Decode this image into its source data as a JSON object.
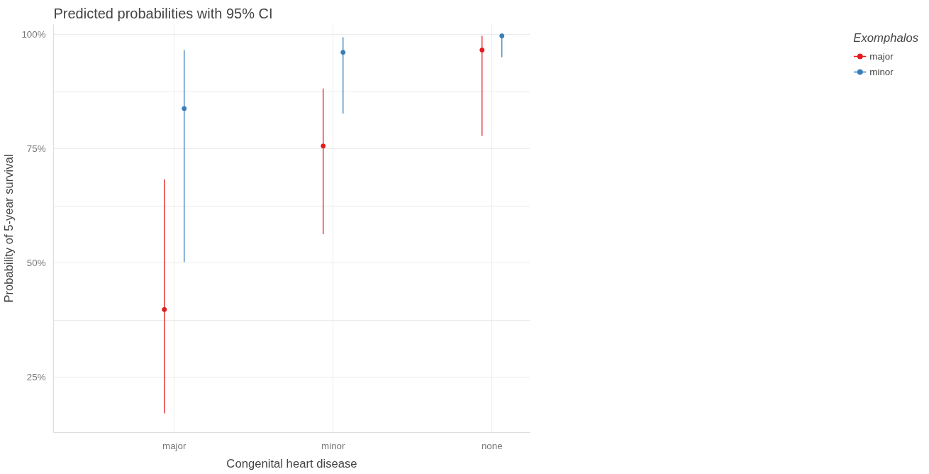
{
  "chart_data": {
    "type": "scatter",
    "title": "Predicted probabilities with 95% CI",
    "xlabel": "Congenital heart disease",
    "ylabel": "Probability of 5-year survival",
    "legend_title": "Exomphalos",
    "categories": [
      "major",
      "minor",
      "none"
    ],
    "series": [
      {
        "name": "major",
        "color": "#e41a1c",
        "values": [
          39.8,
          75.6,
          96.6
        ],
        "errors": [
          [
            17.1,
            68.3
          ],
          [
            56.3,
            88.2
          ],
          [
            77.8,
            99.7
          ]
        ]
      },
      {
        "name": "minor",
        "color": "#377eb8",
        "values": [
          83.8,
          96.1,
          99.7
        ],
        "errors": [
          [
            50.2,
            96.6
          ],
          [
            82.7,
            99.4
          ],
          [
            95.0,
            99.9
          ]
        ]
      }
    ],
    "ylim": [
      12.9,
      102.2
    ],
    "yticks": [
      {
        "value": 25,
        "label": "25%"
      },
      {
        "value": 37.5,
        "label": null
      },
      {
        "value": 50,
        "label": "50%"
      },
      {
        "value": 62.5,
        "label": null
      },
      {
        "value": 75,
        "label": "75%"
      },
      {
        "value": 87.5,
        "label": null
      },
      {
        "value": 100,
        "label": "100%"
      }
    ],
    "grid": true,
    "legend": "right",
    "marker": "circle"
  }
}
